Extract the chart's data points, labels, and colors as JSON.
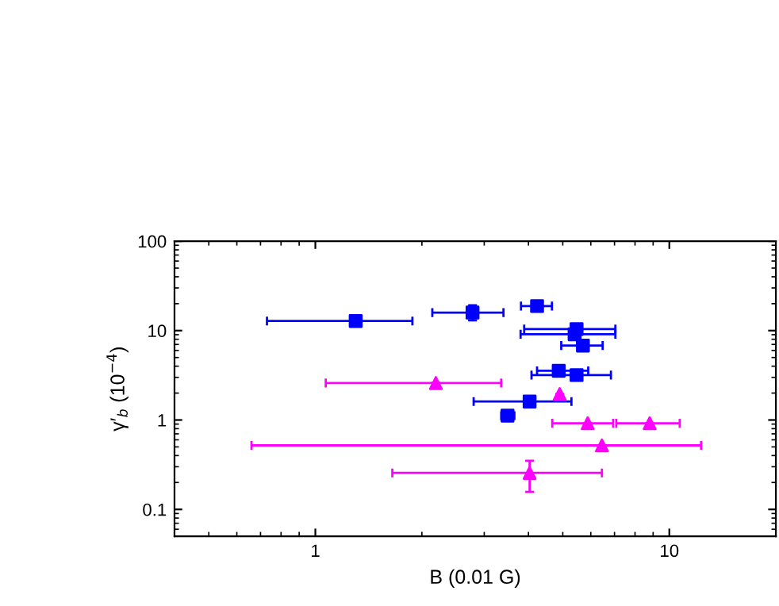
{
  "chart_data": {
    "type": "scatter",
    "xlabel": "B (0.01 G)",
    "ylabel": "γ′$_{b}$ (10$^{−4}$)",
    "log": "xy",
    "xlim": [
      0.4,
      20
    ],
    "ylim": [
      0.05,
      100
    ],
    "xticks": [
      1,
      10
    ],
    "yticks": [
      0.1,
      1,
      10,
      100
    ],
    "grid": false,
    "series": [
      {
        "color": "#0000ff",
        "marker": "square",
        "x": [
          1.3,
          2.78,
          4.23,
          5.47,
          5.4,
          5.7,
          4.87,
          5.47,
          4.03,
          3.49
        ],
        "values": [
          12.8,
          15.9,
          18.8,
          10.4,
          9.1,
          6.8,
          3.55,
          3.18,
          1.61,
          1.12
        ],
        "errors": [
          null,
          [
            13.0,
            19.2
          ],
          null,
          null,
          null,
          null,
          null,
          null,
          null,
          null
        ],
        "xerrors": [
          [
            0.73,
            1.88
          ],
          [
            2.14,
            3.4
          ],
          [
            3.81,
            4.66
          ],
          [
            3.89,
            7.04
          ],
          [
            3.8,
            7.04
          ],
          [
            4.95,
            6.48
          ],
          [
            4.23,
            5.9
          ],
          [
            4.08,
            6.84
          ],
          [
            2.8,
            5.29
          ],
          [
            3.35,
            3.65
          ]
        ]
      },
      {
        "color": "#ff00ff",
        "marker": "triangle",
        "x": [
          2.19,
          4.9,
          5.88,
          8.8,
          6.45,
          4.03
        ],
        "values": [
          2.59,
          1.95,
          0.92,
          0.92,
          0.52,
          0.256
        ],
        "errors": [
          null,
          null,
          null,
          null,
          null,
          [
            0.157,
            0.35
          ]
        ],
        "xerrors": [
          [
            1.07,
            3.35
          ],
          null,
          [
            4.67,
            6.94
          ],
          [
            7.08,
            10.7
          ],
          [
            0.66,
            12.3
          ],
          [
            1.65,
            6.45
          ]
        ]
      }
    ]
  }
}
